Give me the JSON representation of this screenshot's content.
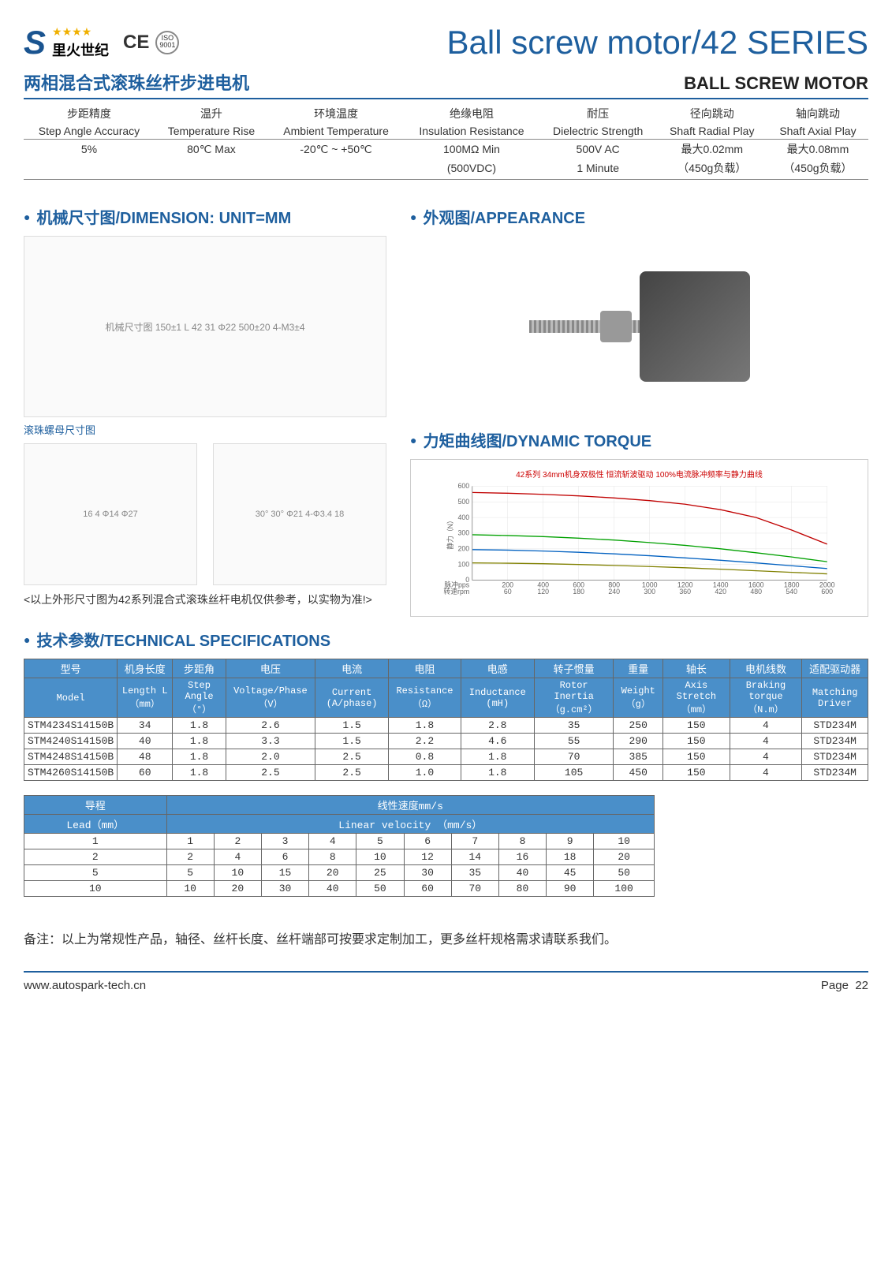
{
  "header": {
    "logo_letter": "S",
    "logo_stars": "★★★★",
    "logo_text": "里火世纪",
    "ce": "CE",
    "iso": "ISO 9001",
    "main_title": "Ball screw motor/42 SERIES"
  },
  "subtitle": {
    "cn": "两相混合式滚珠丝杆步进电机",
    "en": "BALL SCREW MOTOR"
  },
  "top_table": {
    "cols_cn": [
      "步距精度",
      "温升",
      "环境温度",
      "绝缘电阻",
      "耐压",
      "径向跳动",
      "轴向跳动"
    ],
    "cols_en": [
      "Step Angle Accuracy",
      "Temperature Rise",
      "Ambient Temperature",
      "Insulation Resistance",
      "Dielectric Strength",
      "Shaft Radial Play",
      "Shaft Axial Play"
    ],
    "vals1": [
      "5%",
      "80℃ Max",
      "-20℃ ~ +50℃",
      "100MΩ Min",
      "500V AC",
      "最大0.02mm",
      "最大0.08mm"
    ],
    "vals2": [
      "",
      "",
      "",
      "(500VDC)",
      "1 Minute",
      "（450g负载）",
      "（450g负载）"
    ]
  },
  "sections": {
    "dimension": "机械尺寸图/DIMENSION: UNIT=MM",
    "appearance": "外观图/APPEARANCE",
    "torque": "力矩曲线图/DYNAMIC TORQUE",
    "specs": "技术参数/TECHNICAL SPECIFICATIONS"
  },
  "nut_caption": "滚珠螺母尺寸图",
  "dim_placeholder": "机械尺寸图  150±1  L  42  31  Φ22  500±20  4-M3±4",
  "nut_placeholder_1": "16  4  Φ14  Φ27",
  "nut_placeholder_2": "30°  30°  Φ21  4-Φ3.4  18",
  "disclaimer": "<以上外形尺寸图为42系列混合式滚珠丝杆电机仅供参考，以实物为准!>",
  "torque_chart": {
    "title": "42系列 34mm机身双极性 恒流斩波驱动 100%电流脉冲频率与静力曲线",
    "xlabel_top": "脉冲pps",
    "xlabel_bot": "转速rpm",
    "ylabel": "静力（N）",
    "ylim": [
      0,
      600
    ],
    "ytick_step": 100,
    "xticks_pps": [
      200,
      400,
      600,
      800,
      1000,
      1200,
      1400,
      1600,
      1800,
      2000
    ],
    "xticks_rpm": [
      60,
      120,
      180,
      240,
      300,
      360,
      420,
      480,
      540,
      600
    ],
    "background_color": "#ffffff",
    "grid_color": "#e0e0e0",
    "series": [
      {
        "color": "#c00000",
        "width": 1.5,
        "points": [
          [
            0,
            560
          ],
          [
            200,
            555
          ],
          [
            400,
            548
          ],
          [
            600,
            538
          ],
          [
            800,
            525
          ],
          [
            1000,
            508
          ],
          [
            1200,
            485
          ],
          [
            1400,
            450
          ],
          [
            1600,
            400
          ],
          [
            1800,
            320
          ],
          [
            2000,
            230
          ]
        ]
      },
      {
        "color": "#00a000",
        "width": 1.5,
        "points": [
          [
            0,
            290
          ],
          [
            200,
            285
          ],
          [
            400,
            278
          ],
          [
            600,
            268
          ],
          [
            800,
            256
          ],
          [
            1000,
            240
          ],
          [
            1200,
            222
          ],
          [
            1400,
            200
          ],
          [
            1600,
            175
          ],
          [
            1800,
            148
          ],
          [
            2000,
            118
          ]
        ]
      },
      {
        "color": "#0060c0",
        "width": 1.5,
        "points": [
          [
            0,
            195
          ],
          [
            200,
            192
          ],
          [
            400,
            186
          ],
          [
            600,
            178
          ],
          [
            800,
            168
          ],
          [
            1000,
            156
          ],
          [
            1200,
            142
          ],
          [
            1400,
            127
          ],
          [
            1600,
            110
          ],
          [
            1800,
            92
          ],
          [
            2000,
            74
          ]
        ]
      },
      {
        "color": "#808000",
        "width": 1.5,
        "points": [
          [
            0,
            110
          ],
          [
            200,
            108
          ],
          [
            400,
            105
          ],
          [
            600,
            100
          ],
          [
            800,
            94
          ],
          [
            1000,
            87
          ],
          [
            1200,
            79
          ],
          [
            1400,
            70
          ],
          [
            1600,
            60
          ],
          [
            1800,
            50
          ],
          [
            2000,
            40
          ]
        ]
      }
    ]
  },
  "spec_headers_cn": [
    "型号",
    "机身长度",
    "步距角",
    "电压",
    "电流",
    "电阻",
    "电感",
    "转子惯量",
    "重量",
    "轴长",
    "电机线数",
    "适配驱动器"
  ],
  "spec_headers_en": [
    "Model",
    "Length L（mm）",
    "Step Angle（°）",
    "Voltage/Phase（V）",
    "Current (A/phase)",
    "Resistance（Ω）",
    "Inductance (mH)",
    "Rotor Inertia（g.cm²）",
    "Weight（g）",
    "Axis Stretch（mm）",
    "Braking torque（N.m）",
    "Matching Driver"
  ],
  "spec_rows": [
    [
      "STM4234S14150B",
      "34",
      "1.8",
      "2.6",
      "1.5",
      "1.8",
      "2.8",
      "35",
      "250",
      "150",
      "4",
      "STD234M"
    ],
    [
      "STM4240S14150B",
      "40",
      "1.8",
      "3.3",
      "1.5",
      "2.2",
      "4.6",
      "55",
      "290",
      "150",
      "4",
      "STD234M"
    ],
    [
      "STM4248S14150B",
      "48",
      "1.8",
      "2.0",
      "2.5",
      "0.8",
      "1.8",
      "70",
      "385",
      "150",
      "4",
      "STD234M"
    ],
    [
      "STM4260S14150B",
      "60",
      "1.8",
      "2.5",
      "2.5",
      "1.0",
      "1.8",
      "105",
      "450",
      "150",
      "4",
      "STD234M"
    ]
  ],
  "lead_header_cn": "导程",
  "lead_header_en": "Lead（mm）",
  "velocity_header_cn": "线性速度mm/s",
  "velocity_header_en": "Linear velocity （mm/s）",
  "lead_rows": [
    [
      "1",
      "1",
      "2",
      "3",
      "4",
      "5",
      "6",
      "7",
      "8",
      "9",
      "10"
    ],
    [
      "2",
      "2",
      "4",
      "6",
      "8",
      "10",
      "12",
      "14",
      "16",
      "18",
      "20"
    ],
    [
      "5",
      "5",
      "10",
      "15",
      "20",
      "25",
      "30",
      "35",
      "40",
      "45",
      "50"
    ],
    [
      "10",
      "10",
      "20",
      "30",
      "40",
      "50",
      "60",
      "70",
      "80",
      "90",
      "100"
    ]
  ],
  "note": "备注：以上为常规性产品，轴径、丝杆长度、丝杆端部可按要求定制加工，更多丝杆规格需求请联系我们。",
  "footer": {
    "url": "www.autospark-tech.cn",
    "page_label": "Page",
    "page_num": "22"
  }
}
